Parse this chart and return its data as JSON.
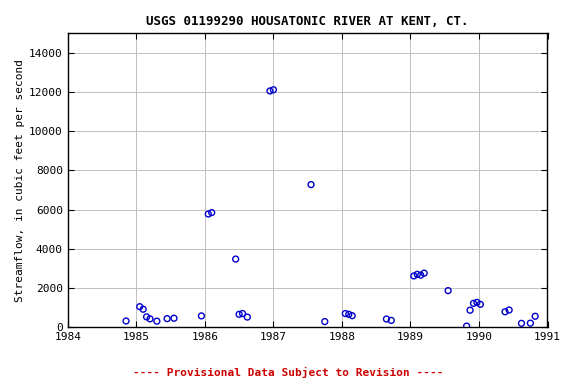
{
  "title": "USGS 01199290 HOUSATONIC RIVER AT KENT, CT.",
  "ylabel": "Streamflow, in cubic feet per second",
  "subtitle": "---- Provisional Data Subject to Revision ----",
  "subtitle_color": "#cc0000",
  "xlim": [
    1984,
    1991
  ],
  "ylim": [
    0,
    15000
  ],
  "yticks": [
    0,
    2000,
    4000,
    6000,
    8000,
    10000,
    12000,
    14000
  ],
  "xticks": [
    1984,
    1985,
    1986,
    1987,
    1988,
    1989,
    1990,
    1991
  ],
  "marker_color": "#0000cc",
  "background_color": "#ffffff",
  "plot_bg_color": "#ffffff",
  "grid_color": "#c0c0c0",
  "x_data": [
    1984.85,
    1985.05,
    1985.1,
    1985.15,
    1985.2,
    1985.3,
    1985.45,
    1985.55,
    1985.95,
    1986.05,
    1986.1,
    1986.45,
    1986.5,
    1986.55,
    1986.62,
    1986.95,
    1987.0,
    1987.55,
    1987.75,
    1988.05,
    1988.1,
    1988.15,
    1988.65,
    1988.72,
    1989.05,
    1989.1,
    1989.15,
    1989.2,
    1989.55,
    1989.82,
    1989.87,
    1989.92,
    1989.97,
    1990.02,
    1990.38,
    1990.44,
    1990.62,
    1990.75,
    1990.82
  ],
  "y_data": [
    320,
    1050,
    920,
    530,
    430,
    310,
    440,
    460,
    580,
    5780,
    5850,
    3480,
    660,
    700,
    520,
    12060,
    12120,
    7280,
    290,
    700,
    660,
    590,
    420,
    350,
    2620,
    2700,
    2660,
    2760,
    1870,
    60,
    870,
    1220,
    1270,
    1170,
    790,
    880,
    200,
    210,
    560
  ]
}
